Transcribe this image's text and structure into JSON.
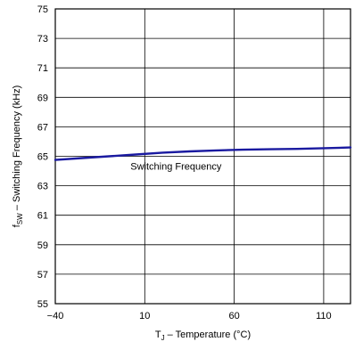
{
  "chart_data": {
    "type": "line",
    "xlabel_main": "T",
    "xlabel_sub": "J",
    "xlabel_rest": " – Temperature (°C)",
    "ylabel_main": "f",
    "ylabel_sub": "SW",
    "ylabel_rest": " – Switching Frequency (kHz)",
    "xlim": [
      -40,
      125
    ],
    "ylim": [
      55,
      75
    ],
    "x_ticks": [
      -40,
      10,
      60,
      110
    ],
    "x_tick_labels": [
      "−40",
      "10",
      "60",
      "110"
    ],
    "y_ticks": [
      55,
      57,
      59,
      61,
      63,
      65,
      67,
      69,
      71,
      73,
      75
    ],
    "grid": true,
    "annotation": "Switching Frequency",
    "series": [
      {
        "name": "Switching Frequency",
        "color": "#1a1aa0",
        "x": [
          -40,
          -25,
          -10,
          5,
          20,
          35,
          50,
          65,
          80,
          95,
          110,
          125
        ],
        "y": [
          64.75,
          64.88,
          65.0,
          65.12,
          65.25,
          65.33,
          65.4,
          65.45,
          65.48,
          65.5,
          65.55,
          65.6
        ]
      }
    ]
  }
}
